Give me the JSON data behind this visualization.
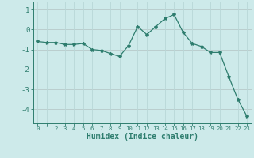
{
  "x": [
    0,
    1,
    2,
    3,
    4,
    5,
    6,
    7,
    8,
    9,
    10,
    11,
    12,
    13,
    14,
    15,
    16,
    17,
    18,
    19,
    20,
    21,
    22,
    23
  ],
  "y": [
    -0.6,
    -0.65,
    -0.65,
    -0.75,
    -0.75,
    -0.7,
    -1.0,
    -1.05,
    -1.2,
    -1.35,
    -0.8,
    0.15,
    -0.25,
    0.15,
    0.55,
    0.75,
    -0.15,
    -0.7,
    -0.85,
    -1.15,
    -1.15,
    -2.35,
    -3.5,
    -4.35
  ],
  "line_color": "#2e7d6e",
  "marker": "*",
  "bg_color": "#cdeaea",
  "grid_color": "#b8d8d8",
  "red_line_color": "#c89090",
  "xlabel": "Humidex (Indice chaleur)",
  "xlabel_fontsize": 7,
  "tick_fontsize": 6,
  "ylim": [
    -4.7,
    1.4
  ],
  "xlim": [
    -0.5,
    23.5
  ],
  "yticks": [
    1,
    0,
    -1,
    -2,
    -3,
    -4
  ],
  "xticks": [
    0,
    1,
    2,
    3,
    4,
    5,
    6,
    7,
    8,
    9,
    10,
    11,
    12,
    13,
    14,
    15,
    16,
    17,
    18,
    19,
    20,
    21,
    22,
    23
  ]
}
